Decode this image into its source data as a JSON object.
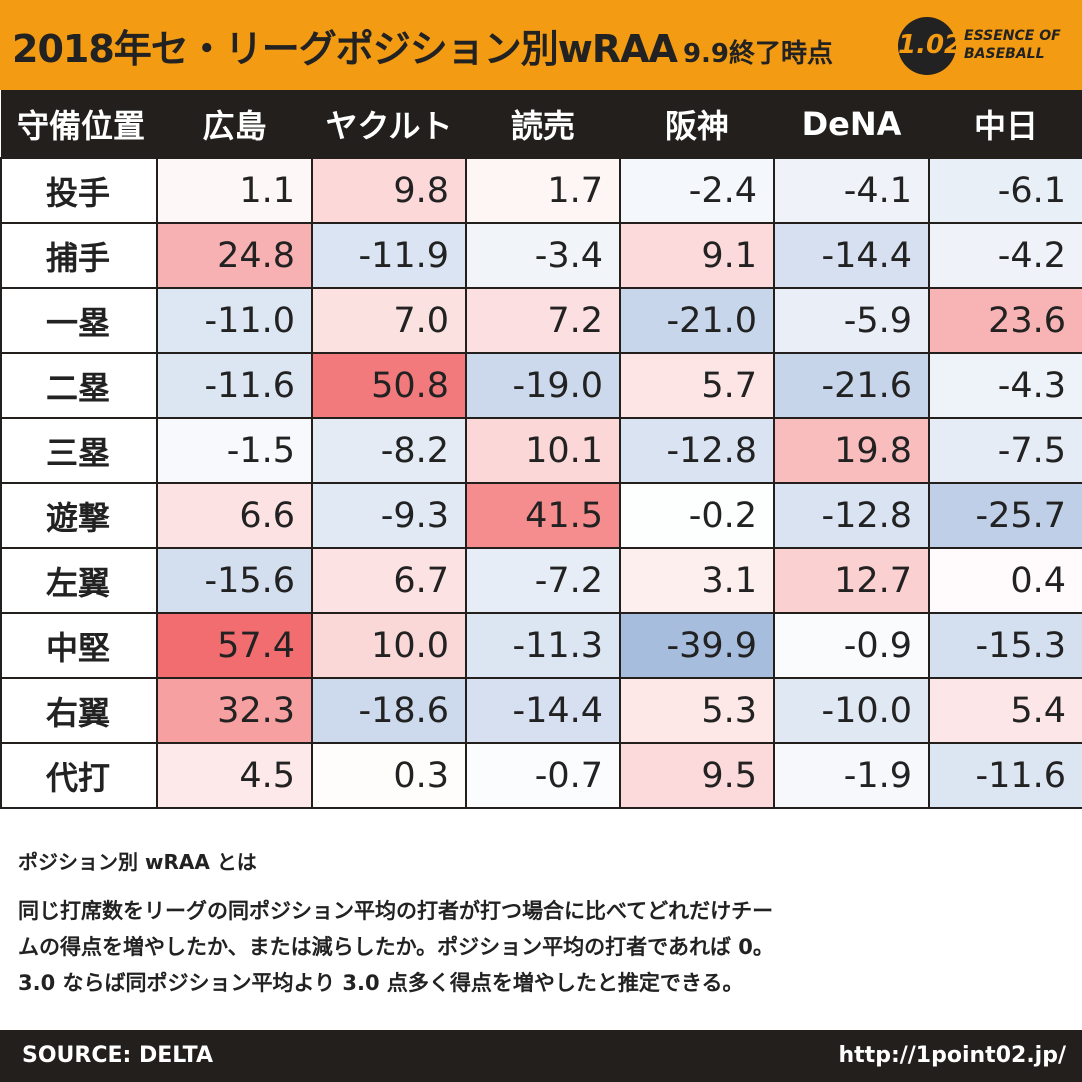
{
  "header": {
    "title": "2018年セ・リーグポジション別wRAA",
    "subtitle": "9.9終了時点",
    "logo_number": "1.02",
    "logo_line1": "ESSENCE OF",
    "logo_line2": "BASEBALL"
  },
  "chart_data": {
    "type": "table",
    "title": "2018年セ・リーグポジション別wRAA 9.9終了時点",
    "row_header_label": "守備位置",
    "columns": [
      "広島",
      "ヤクルト",
      "読売",
      "阪神",
      "DeNA",
      "中日"
    ],
    "rows": [
      {
        "position": "投手",
        "values": [
          "1.1",
          "9.8",
          "1.7",
          "-2.4",
          "-4.1",
          "-6.1"
        ]
      },
      {
        "position": "捕手",
        "values": [
          "24.8",
          "-11.9",
          "-3.4",
          "9.1",
          "-14.4",
          "-4.2"
        ]
      },
      {
        "position": "一塁",
        "values": [
          "-11.0",
          "7.0",
          "7.2",
          "-21.0",
          "-5.9",
          "23.6"
        ]
      },
      {
        "position": "二塁",
        "values": [
          "-11.6",
          "50.8",
          "-19.0",
          "5.7",
          "-21.6",
          "-4.3"
        ]
      },
      {
        "position": "三塁",
        "values": [
          "-1.5",
          "-8.2",
          "10.1",
          "-12.8",
          "19.8",
          "-7.5"
        ]
      },
      {
        "position": "遊撃",
        "values": [
          "6.6",
          "-9.3",
          "41.5",
          "-0.2",
          "-12.8",
          "-25.7"
        ]
      },
      {
        "position": "左翼",
        "values": [
          "-15.6",
          "6.7",
          "-7.2",
          "3.1",
          "12.7",
          "0.4"
        ]
      },
      {
        "position": "中堅",
        "values": [
          "57.4",
          "10.0",
          "-11.3",
          "-39.9",
          "-0.9",
          "-15.3"
        ]
      },
      {
        "position": "右翼",
        "values": [
          "32.3",
          "-18.6",
          "-14.4",
          "5.3",
          "-10.0",
          "5.4"
        ]
      },
      {
        "position": "代打",
        "values": [
          "4.5",
          "0.3",
          "-0.7",
          "9.5",
          "-1.9",
          "-11.6"
        ]
      }
    ],
    "color_scale": {
      "positive": "#f26d6f",
      "negative": "#8aa8d4",
      "neutral": "#ffffff"
    }
  },
  "note": {
    "title": "ポジション別 wRAA とは",
    "line1": "同じ打席数をリーグの同ポジション平均の打者が打つ場合に比べてどれだけチー",
    "line2": "ムの得点を増やしたか、または減らしたか。ポジション平均の打者であれば 0。",
    "line3": "3.0 ならば同ポジション平均より 3.0 点多く得点を増やしたと推定できる。"
  },
  "footer": {
    "source": "SOURCE: DELTA",
    "url": "http://1point02.jp/"
  }
}
